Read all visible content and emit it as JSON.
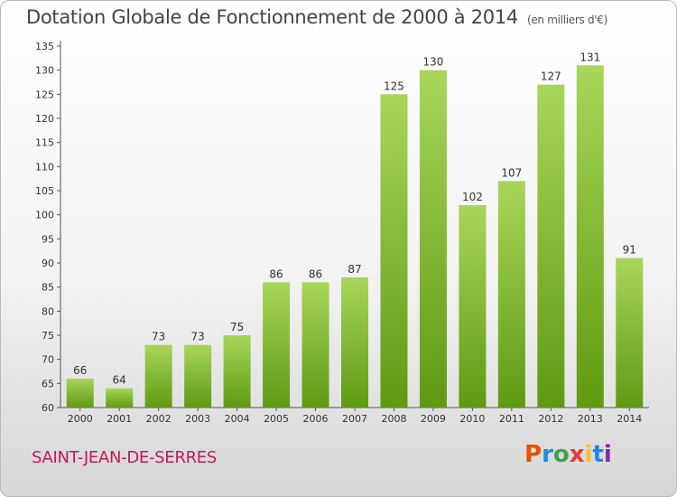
{
  "title": "Dotation Globale de Fonctionnement de 2000 à 2014",
  "unit": "(en milliers d'€)",
  "commune": "SAINT-JEAN-DE-SERRES",
  "logo": "Proxiti",
  "colors": {
    "bar_light": "#a8d65a",
    "bar_dark": "#5f9a12",
    "commune": "#c2185b",
    "logo_letters": [
      "#e65100",
      "#1e88e5",
      "#43a047",
      "#e53935",
      "#fbc02d",
      "#1e88e5",
      "#8e24aa"
    ]
  },
  "chart_data": {
    "type": "bar",
    "title": "Dotation Globale de Fonctionnement de 2000 à 2014",
    "xlabel": "",
    "ylabel": "",
    "categories": [
      "2000",
      "2001",
      "2002",
      "2003",
      "2004",
      "2005",
      "2006",
      "2007",
      "2008",
      "2009",
      "2010",
      "2011",
      "2012",
      "2013",
      "2014"
    ],
    "values": [
      66,
      64,
      73,
      73,
      75,
      86,
      86,
      87,
      125,
      130,
      102,
      107,
      127,
      131,
      91
    ],
    "ylim": [
      60,
      135
    ],
    "yticks": [
      60,
      65,
      70,
      75,
      80,
      85,
      90,
      95,
      100,
      105,
      110,
      115,
      120,
      125,
      130,
      135
    ],
    "grid": false,
    "data_labels": true
  }
}
